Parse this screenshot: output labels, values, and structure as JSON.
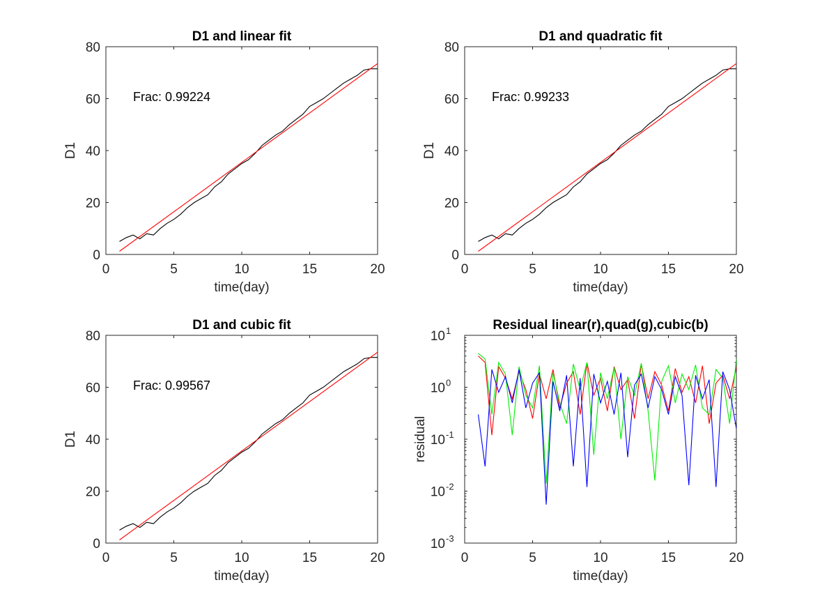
{
  "chart_data": [
    {
      "type": "line",
      "title": "D1 and linear fit",
      "xlabel": "time(day)",
      "ylabel": "D1",
      "xlim": [
        0,
        20
      ],
      "ylim": [
        0,
        80
      ],
      "xticks": [
        "0",
        "5",
        "10",
        "15",
        "20"
      ],
      "yticks": [
        "0",
        "20",
        "40",
        "60",
        "80"
      ],
      "annotation": "Frac: 0.99224",
      "series": [
        {
          "color": "#000000",
          "x": [
            1,
            1.5,
            2,
            2.5,
            3,
            3.5,
            4,
            4.5,
            5,
            5.5,
            6,
            6.5,
            7,
            7.5,
            8,
            8.5,
            9,
            9.5,
            10,
            10.5,
            11,
            11.5,
            12,
            12.5,
            13,
            13.5,
            14,
            14.5,
            15,
            15.5,
            16,
            16.5,
            17,
            17.5,
            18,
            18.5,
            19,
            19.5,
            20
          ],
          "y": [
            5,
            6.5,
            7.5,
            6,
            8,
            7.5,
            10,
            12,
            13.5,
            15.5,
            18,
            20,
            21.5,
            23,
            26,
            28,
            31,
            33,
            35,
            36.5,
            39,
            42,
            44,
            46,
            47.5,
            50,
            52,
            54,
            57,
            58.5,
            60,
            62,
            64,
            66,
            67.5,
            69,
            71,
            71.5,
            71.5
          ]
        },
        {
          "color": "#ff0000",
          "x": [
            1,
            20
          ],
          "y": [
            1.2,
            73.5
          ]
        }
      ]
    },
    {
      "type": "line",
      "title": "D1 and quadratic fit",
      "xlabel": "time(day)",
      "ylabel": "D1",
      "xlim": [
        0,
        20
      ],
      "ylim": [
        0,
        80
      ],
      "xticks": [
        "0",
        "5",
        "10",
        "15",
        "20"
      ],
      "yticks": [
        "0",
        "20",
        "40",
        "60",
        "80"
      ],
      "annotation": "Frac: 0.99233",
      "series": [
        {
          "color": "#000000",
          "x": [
            1,
            1.5,
            2,
            2.5,
            3,
            3.5,
            4,
            4.5,
            5,
            5.5,
            6,
            6.5,
            7,
            7.5,
            8,
            8.5,
            9,
            9.5,
            10,
            10.5,
            11,
            11.5,
            12,
            12.5,
            13,
            13.5,
            14,
            14.5,
            15,
            15.5,
            16,
            16.5,
            17,
            17.5,
            18,
            18.5,
            19,
            19.5,
            20
          ],
          "y": [
            5,
            6.5,
            7.5,
            6,
            8,
            7.5,
            10,
            12,
            13.5,
            15.5,
            18,
            20,
            21.5,
            23,
            26,
            28,
            31,
            33,
            35,
            36.5,
            39,
            42,
            44,
            46,
            47.5,
            50,
            52,
            54,
            57,
            58.5,
            60,
            62,
            64,
            66,
            67.5,
            69,
            71,
            71.5,
            71.5
          ]
        },
        {
          "color": "#ff0000",
          "x": [
            1,
            20
          ],
          "y": [
            1.2,
            73.5
          ]
        }
      ]
    },
    {
      "type": "line",
      "title": "D1 and cubic fit",
      "xlabel": "time(day)",
      "ylabel": "D1",
      "xlim": [
        0,
        20
      ],
      "ylim": [
        0,
        80
      ],
      "xticks": [
        "0",
        "5",
        "10",
        "15",
        "20"
      ],
      "yticks": [
        "0",
        "20",
        "40",
        "60",
        "80"
      ],
      "annotation": "Frac: 0.99567",
      "series": [
        {
          "color": "#000000",
          "x": [
            1,
            1.5,
            2,
            2.5,
            3,
            3.5,
            4,
            4.5,
            5,
            5.5,
            6,
            6.5,
            7,
            7.5,
            8,
            8.5,
            9,
            9.5,
            10,
            10.5,
            11,
            11.5,
            12,
            12.5,
            13,
            13.5,
            14,
            14.5,
            15,
            15.5,
            16,
            16.5,
            17,
            17.5,
            18,
            18.5,
            19,
            19.5,
            20
          ],
          "y": [
            5,
            6.5,
            7.5,
            6,
            8,
            7.5,
            10,
            12,
            13.5,
            15.5,
            18,
            20,
            21.5,
            23,
            26,
            28,
            31,
            33,
            35,
            36.5,
            39,
            42,
            44,
            46,
            47.5,
            50,
            52,
            54,
            57,
            58.5,
            60,
            62,
            64,
            66,
            67.5,
            69,
            71,
            71.5,
            71.5
          ]
        },
        {
          "color": "#ff0000",
          "x": [
            1,
            20
          ],
          "y": [
            1.2,
            73.5
          ]
        }
      ]
    },
    {
      "type": "line",
      "title": "Residual linear(r),quad(g),cubic(b)",
      "xlabel": "time(day)",
      "ylabel": "residual",
      "xlim": [
        0,
        20
      ],
      "ylim": [
        0.001,
        10
      ],
      "yscale": "log",
      "xticks": [
        "0",
        "5",
        "10",
        "15",
        "20"
      ],
      "yticks_exponents": [
        "1",
        "0",
        "-1",
        "-2",
        "-3"
      ],
      "ytick_base": "10",
      "series": [
        {
          "color": "#ff0000",
          "x": [
            1,
            1.5,
            2,
            2.5,
            3,
            3.5,
            4,
            4.5,
            5,
            5.5,
            6,
            6.5,
            7,
            7.5,
            8,
            8.5,
            9,
            9.5,
            10,
            10.5,
            11,
            11.5,
            12,
            12.5,
            13,
            13.5,
            14,
            14.5,
            15,
            15.5,
            16,
            16.5,
            17,
            17.5,
            18,
            18.5,
            19,
            19.5,
            20
          ],
          "y": [
            4,
            3,
            0.12,
            2.5,
            1.5,
            0.6,
            2,
            0.9,
            0.25,
            1.8,
            0.6,
            2.2,
            0.4,
            1.2,
            2,
            0.3,
            3,
            0.7,
            1.5,
            0.35,
            2.5,
            0.9,
            1.4,
            0.25,
            2.8,
            0.6,
            2,
            1.1,
            0.35,
            2.3,
            0.8,
            1.6,
            0.5,
            2.6,
            0.2,
            1.2,
            1.7,
            0.6,
            2.5
          ]
        },
        {
          "color": "#00ee00",
          "x": [
            1,
            1.5,
            2,
            2.5,
            3,
            3.5,
            4,
            4.5,
            5,
            5.5,
            6,
            6.5,
            7,
            7.5,
            8,
            8.5,
            9,
            9.5,
            10,
            10.5,
            11,
            11.5,
            12,
            12.5,
            13,
            13.5,
            14,
            14.5,
            15,
            15.5,
            16,
            16.5,
            17,
            17.5,
            18,
            18.5,
            19,
            19.5,
            20
          ],
          "y": [
            4.5,
            3.5,
            0.3,
            3,
            1.8,
            0.12,
            2.5,
            0.7,
            0.4,
            2.6,
            0.014,
            1.9,
            0.5,
            0.2,
            2.8,
            0.9,
            3,
            0.05,
            1.9,
            0.6,
            2.4,
            0.1,
            1.6,
            0.7,
            2.9,
            0.35,
            0.016,
            1.3,
            2.6,
            0.5,
            1.8,
            0.9,
            2.7,
            0.4,
            0.3,
            2.2,
            1.5,
            0.2,
            3.5
          ]
        },
        {
          "color": "#0000ff",
          "x": [
            1,
            1.5,
            2,
            2.5,
            3,
            3.5,
            4,
            4.5,
            5,
            5.5,
            6,
            6.5,
            7,
            7.5,
            8,
            8.5,
            9,
            9.5,
            10,
            10.5,
            11,
            11.5,
            12,
            12.5,
            13,
            13.5,
            14,
            14.5,
            15,
            15.5,
            16,
            16.5,
            17,
            17.5,
            18,
            18.5,
            19,
            19.5,
            20
          ],
          "y": [
            0.3,
            0.03,
            2.2,
            0.8,
            1.6,
            0.5,
            2.2,
            0.4,
            1.2,
            1.9,
            0.0055,
            1.3,
            0.35,
            1.7,
            0.03,
            1.5,
            0.012,
            1.8,
            0.5,
            1.3,
            0.3,
            1.9,
            0.045,
            1.1,
            1.8,
            0.4,
            1.6,
            0.9,
            0.3,
            1.6,
            0.7,
            0.013,
            1.7,
            0.6,
            1.4,
            0.012,
            2,
            0.9,
            0.16
          ]
        }
      ]
    }
  ]
}
